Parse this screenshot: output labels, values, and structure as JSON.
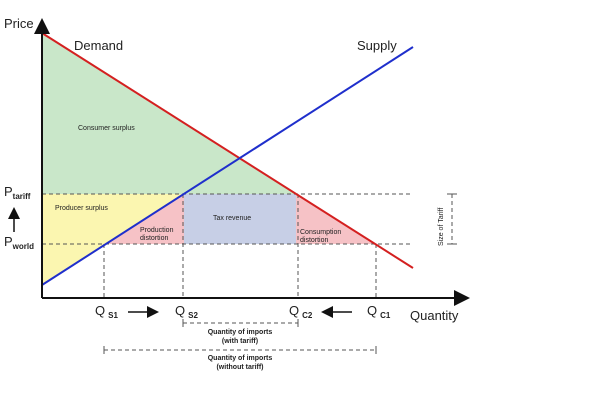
{
  "axes": {
    "y_label": "Price",
    "x_label": "Quantity"
  },
  "curves": {
    "demand": "Demand",
    "supply": "Supply"
  },
  "prices": [
    {
      "main": "P",
      "sub": "tariff"
    },
    {
      "main": "P",
      "sub": "world"
    }
  ],
  "quantities": [
    {
      "main": "Q",
      "sub": "S1"
    },
    {
      "main": "Q",
      "sub": "S2"
    },
    {
      "main": "Q",
      "sub": "C2"
    },
    {
      "main": "Q",
      "sub": "C1"
    }
  ],
  "regions": {
    "consumer_surplus": "Consumer surplus",
    "producer_surplus": "Producer surplus",
    "production_distortion": [
      "Production",
      "distortion"
    ],
    "tax_revenue": "Tax revenue",
    "consumption_distortion": [
      "Consumption",
      "distortion"
    ]
  },
  "size_of_tariff": "Size of Tariff",
  "imports_with_tariff": [
    "Quantity of imports",
    "(with tariff)"
  ],
  "imports_without_tariff": [
    "Quantity of imports",
    "(without tariff)"
  ]
}
